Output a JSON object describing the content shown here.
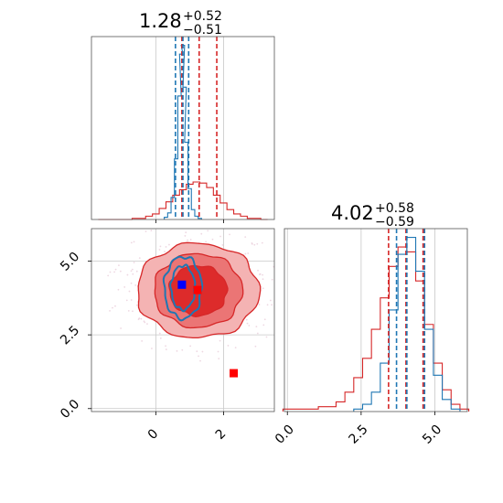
{
  "colors": {
    "red": "#d62728",
    "blue": "#1f77b4",
    "grid": "#c8c8c8",
    "red_fill_light": "#f4b3b3",
    "red_fill_mid": "#eb7575",
    "red_fill_dark": "#dd2b2b",
    "marker_blue": "#0000ff",
    "marker_red": "#ff0000"
  },
  "chart_data": [
    {
      "type": "histogram",
      "panel": "top-left",
      "title": {
        "value": "1.28",
        "plus": "+0.52",
        "minus": "−0.51"
      },
      "xlim": [
        -1.9,
        3.5
      ],
      "x_ticks": [
        0,
        2
      ],
      "quantile_lines": [
        {
          "series": "red",
          "values": [
            0.77,
            1.28,
            1.8
          ]
        },
        {
          "series": "blue",
          "values": [
            0.58,
            0.8,
            0.97
          ]
        }
      ],
      "series": [
        {
          "name": "",
          "color": "red",
          "bins_x": [
            -1.6,
            -1.4,
            -1.2,
            -1.0,
            -0.8,
            -0.6,
            -0.4,
            -0.2,
            0.0,
            0.2,
            0.4,
            0.6,
            0.8,
            1.0,
            1.2,
            1.4,
            1.6,
            1.8,
            2.0,
            2.2,
            2.4,
            2.6,
            2.8,
            3.0,
            3.2
          ],
          "counts": [
            0,
            0,
            0,
            0,
            0,
            1,
            1,
            3,
            5,
            10,
            16,
            22,
            27,
            32,
            34,
            33,
            29,
            22,
            15,
            9,
            5,
            3,
            1,
            1,
            0
          ]
        },
        {
          "name": "",
          "color": "blue",
          "bins_x": [
            0.3,
            0.4,
            0.5,
            0.6,
            0.7,
            0.75,
            0.8,
            0.85,
            0.9,
            1.0,
            1.1,
            1.2,
            1.3
          ],
          "counts": [
            2,
            6,
            20,
            55,
            112,
            150,
            158,
            120,
            70,
            28,
            9,
            3,
            1
          ]
        }
      ]
    },
    {
      "type": "contour",
      "panel": "bottom-left",
      "xlim": [
        -1.9,
        3.5
      ],
      "ylim": [
        -0.1,
        6.1
      ],
      "x_ticks": [
        0,
        2
      ],
      "y_ticks": [
        0.0,
        2.5,
        5.0
      ],
      "y_tick_labels": [
        "0.0",
        "2.5",
        "5.0"
      ],
      "x_tick_labels": [
        "0",
        "2"
      ],
      "red_contours": [
        {
          "level": "outer",
          "center": [
            1.25,
            4.0
          ],
          "rx": 1.8,
          "ry": 1.6
        },
        {
          "level": "middle",
          "center": [
            1.25,
            4.0
          ],
          "rx": 1.3,
          "ry": 1.25
        },
        {
          "level": "inner",
          "center": [
            1.25,
            4.0
          ],
          "rx": 0.85,
          "ry": 0.85
        }
      ],
      "blue_contours": [
        {
          "center": [
            0.8,
            4.1
          ],
          "rx": 0.55,
          "ry": 1.05
        },
        {
          "center": [
            0.8,
            4.1
          ],
          "rx": 0.35,
          "ry": 0.75
        }
      ],
      "markers": [
        {
          "color": "marker_blue",
          "x": 0.77,
          "y": 4.2
        },
        {
          "color": "marker_red",
          "x": 1.23,
          "y": 4.02
        },
        {
          "color": "marker_red",
          "x": 2.3,
          "y": 1.2
        }
      ]
    },
    {
      "type": "histogram",
      "panel": "bottom-right",
      "title": {
        "value": "4.02",
        "plus": "+0.58",
        "minus": "−0.59"
      },
      "xlim": [
        -0.1,
        6.1
      ],
      "x_ticks": [
        0.0,
        2.5,
        5.0
      ],
      "x_tick_labels": [
        "0.0",
        "2.5",
        "5.0"
      ],
      "quantile_lines": [
        {
          "series": "red",
          "values": [
            3.43,
            4.02,
            4.6
          ]
        },
        {
          "series": "blue",
          "values": [
            3.7,
            4.05,
            4.65
          ]
        }
      ],
      "series": [
        {
          "name": "",
          "color": "red",
          "bins_x": [
            0.0,
            0.3,
            0.6,
            0.9,
            1.2,
            1.5,
            1.8,
            2.1,
            2.4,
            2.7,
            3.0,
            3.3,
            3.6,
            3.9,
            4.2,
            4.5,
            4.8,
            5.1,
            5.4,
            5.7,
            6.0
          ],
          "counts": [
            1,
            1,
            1,
            1,
            2,
            2,
            4,
            8,
            14,
            22,
            34,
            47,
            60,
            68,
            66,
            54,
            36,
            20,
            9,
            3,
            1
          ]
        },
        {
          "name": "",
          "color": "blue",
          "bins_x": [
            2.4,
            2.7,
            3.0,
            3.3,
            3.6,
            3.9,
            4.2,
            4.5,
            4.8,
            5.1,
            5.4,
            5.7
          ],
          "counts": [
            1,
            3,
            8,
            20,
            42,
            65,
            72,
            58,
            34,
            15,
            5,
            1
          ]
        }
      ]
    }
  ]
}
